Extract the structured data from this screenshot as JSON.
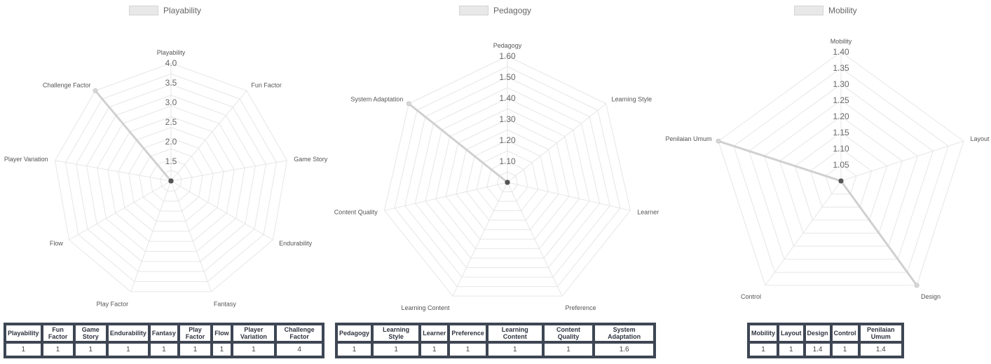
{
  "chart_data": [
    {
      "type": "radar",
      "legend": "Playability",
      "labels": [
        "Playability",
        "Fun Factor",
        "Game Story",
        "Endurability",
        "Fantasy",
        "Play Factor",
        "Flow",
        "Player Variation",
        "Challenge Factor"
      ],
      "values": [
        1,
        1,
        1,
        1,
        1,
        1,
        1,
        1,
        4
      ],
      "ticks": [
        "4.0",
        "3.5",
        "3.0",
        "2.5",
        "2.0",
        "1.5"
      ],
      "range": [
        1,
        4
      ],
      "grid_levels": 11,
      "table": {
        "headers": [
          "Playability",
          "Fun Factor",
          "Game Story",
          "Endurability",
          "Fantasy",
          "Play Factor",
          "Flow",
          "Player Variation",
          "Challenge Factor"
        ],
        "values": [
          "1",
          "1",
          "1",
          "1",
          "1",
          "1",
          "1",
          "1",
          "4"
        ]
      }
    },
    {
      "type": "radar",
      "legend": "Pedagogy",
      "labels": [
        "Pedagogy",
        "Learning Style",
        "Learner",
        "Preference",
        "Learning Content",
        "Content Quality",
        "System Adaptation"
      ],
      "values": [
        1,
        1,
        1,
        1,
        1,
        1,
        1.6
      ],
      "ticks": [
        "1.60",
        "1.50",
        "1.40",
        "1.30",
        "1.20",
        "1.10"
      ],
      "range": [
        1,
        1.6
      ],
      "grid_levels": 12,
      "table": {
        "headers": [
          "Pedagogy",
          "Learning Style",
          "Learner",
          "Preference",
          "Learning Content",
          "Content Quality",
          "System Adaptation"
        ],
        "values": [
          "1",
          "1",
          "1",
          "1",
          "1",
          "1",
          "1.6"
        ]
      }
    },
    {
      "type": "radar",
      "legend": "Mobility",
      "labels": [
        "Mobility",
        "Layout",
        "Design",
        "Control",
        "Penilaian Umum"
      ],
      "values": [
        1,
        1,
        1.4,
        1,
        1.4
      ],
      "ticks": [
        "1.40",
        "1.35",
        "1.30",
        "1.25",
        "1.20",
        "1.15",
        "1.10",
        "1.05"
      ],
      "range": [
        1,
        1.4
      ],
      "grid_levels": 8,
      "table": {
        "headers": [
          "Mobility",
          "Layout",
          "Design",
          "Control",
          "Penilaian Umum"
        ],
        "values": [
          "1",
          "1",
          "1.4",
          "1",
          "1.4"
        ]
      }
    }
  ]
}
